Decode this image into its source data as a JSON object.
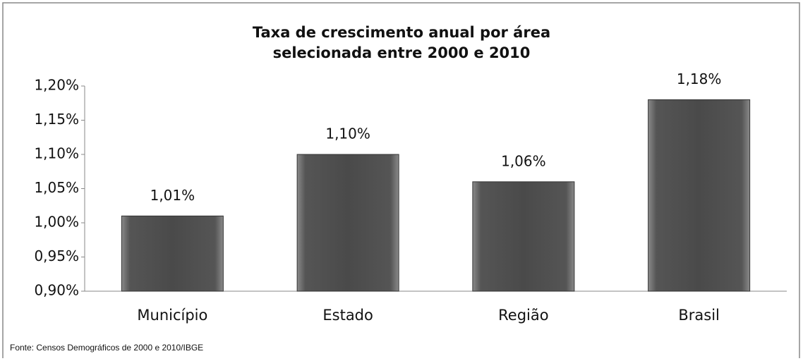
{
  "chart_data": {
    "type": "bar",
    "title": [
      "Taxa de crescimento anual por área",
      "selecionada entre 2000 e 2010"
    ],
    "categories": [
      "Município",
      "Estado",
      "Região",
      "Brasil"
    ],
    "values": [
      1.01,
      1.1,
      1.06,
      1.18
    ],
    "value_labels": [
      "1,01%",
      "1,10%",
      "1,06%",
      "1,18%"
    ],
    "color": "#4a4a4a",
    "ylim": [
      0.9,
      1.2
    ],
    "yticks": [
      {
        "value": 0.9,
        "label": "0,90%"
      },
      {
        "value": 0.95,
        "label": "0,95%"
      },
      {
        "value": 1.0,
        "label": "1,00%"
      },
      {
        "value": 1.05,
        "label": "1,05%"
      },
      {
        "value": 1.1,
        "label": "1,10%"
      },
      {
        "value": 1.15,
        "label": "1,15%"
      },
      {
        "value": 1.2,
        "label": "1,20%"
      }
    ],
    "source": "Fonte: Censos Demográficos de 2000 e 2010/IBGE"
  }
}
